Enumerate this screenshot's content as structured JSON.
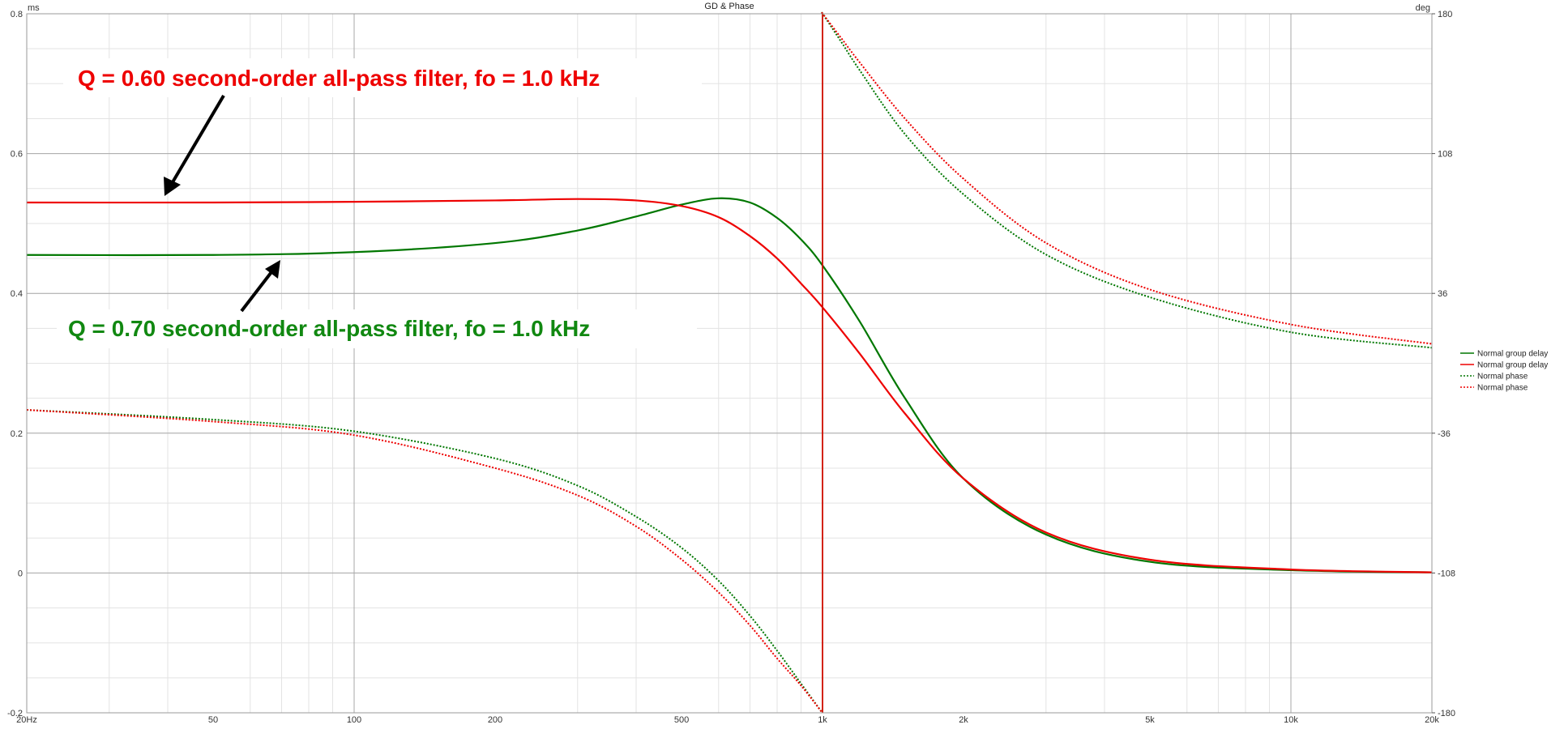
{
  "chart_data": {
    "type": "line",
    "title": "GD & Phase",
    "y_left_unit": "ms",
    "y_right_unit": "deg",
    "x_scale": "log",
    "xlim": [
      20,
      20000
    ],
    "ylim_left": [
      -0.2,
      0.8
    ],
    "ylim_right": [
      -180,
      180
    ],
    "x_ticks": [
      {
        "value": 20,
        "label": "20Hz"
      },
      {
        "value": 50,
        "label": "50"
      },
      {
        "value": 100,
        "label": "100"
      },
      {
        "value": 200,
        "label": "200"
      },
      {
        "value": 500,
        "label": "500"
      },
      {
        "value": 1000,
        "label": "1k"
      },
      {
        "value": 2000,
        "label": "2k"
      },
      {
        "value": 5000,
        "label": "5k"
      },
      {
        "value": 10000,
        "label": "10k"
      },
      {
        "value": 20000,
        "label": "20k"
      }
    ],
    "y_left_ticks": [
      {
        "value": 0.8,
        "label": "0.8"
      },
      {
        "value": 0.6,
        "label": "0.6"
      },
      {
        "value": 0.4,
        "label": "0.4"
      },
      {
        "value": 0.2,
        "label": "0.2"
      },
      {
        "value": 0.0,
        "label": "0"
      },
      {
        "value": -0.2,
        "label": "-0.2"
      }
    ],
    "y_right_ticks": [
      {
        "value": 180,
        "label": "180"
      },
      {
        "value": 108,
        "label": "108"
      },
      {
        "value": 36,
        "label": "36"
      },
      {
        "value": -36,
        "label": "-36"
      },
      {
        "value": -108,
        "label": "-108"
      },
      {
        "value": -180,
        "label": "-180"
      }
    ],
    "grid": true,
    "legend_position": "right",
    "legend": [
      {
        "label": "Normal group delay",
        "color": "#007700",
        "style": "solid"
      },
      {
        "label": "Normal group delay",
        "color": "#ee0000",
        "style": "solid"
      },
      {
        "label": "Normal phase",
        "color": "#007700",
        "style": "dotted"
      },
      {
        "label": "Normal phase",
        "color": "#ee0000",
        "style": "dotted"
      }
    ],
    "series": [
      {
        "color": "#007700",
        "style": "solid",
        "axis": "left",
        "x": [
          20,
          50,
          100,
          200,
          300,
          400,
          500,
          600,
          700,
          800,
          900,
          1000,
          1200,
          1500,
          2000,
          3000,
          5000,
          10000,
          20000
        ],
        "y": [
          0.455,
          0.455,
          0.459,
          0.472,
          0.49,
          0.51,
          0.527,
          0.536,
          0.53,
          0.508,
          0.477,
          0.44,
          0.36,
          0.25,
          0.135,
          0.055,
          0.016,
          0.004,
          0.001
        ]
      },
      {
        "color": "#ee0000",
        "style": "solid",
        "axis": "left",
        "x": [
          20,
          50,
          100,
          200,
          300,
          400,
          500,
          600,
          700,
          800,
          900,
          1000,
          1200,
          1500,
          2000,
          3000,
          5000,
          10000,
          20000
        ],
        "y": [
          0.53,
          0.53,
          0.531,
          0.533,
          0.535,
          0.533,
          0.525,
          0.509,
          0.482,
          0.45,
          0.414,
          0.38,
          0.314,
          0.228,
          0.135,
          0.058,
          0.019,
          0.005,
          0.001
        ]
      },
      {
        "color": "#007700",
        "style": "dotted",
        "axis": "right",
        "x": [
          20,
          50,
          100,
          200,
          300,
          400,
          500,
          600,
          700,
          800,
          900,
          999,
          1000,
          1001,
          1100,
          1200,
          1500,
          2000,
          3000,
          5000,
          10000,
          20000
        ],
        "y": [
          -24,
          -29,
          -35,
          -49,
          -63,
          -79,
          -95,
          -112,
          -130,
          -148,
          -165,
          -180,
          180,
          180,
          165,
          151,
          118,
          87,
          56,
          34,
          16,
          8
        ]
      },
      {
        "color": "#ee0000",
        "style": "dotted",
        "axis": "right",
        "x": [
          20,
          50,
          100,
          200,
          300,
          400,
          500,
          600,
          700,
          800,
          900,
          999,
          1000,
          1001,
          1100,
          1200,
          1500,
          2000,
          3000,
          5000,
          10000,
          20000
        ],
        "y": [
          -24,
          -30,
          -37,
          -54,
          -68,
          -84,
          -101,
          -118,
          -135,
          -152,
          -166,
          -180,
          180,
          180,
          167,
          155,
          126,
          95,
          62,
          38,
          20,
          10
        ]
      }
    ],
    "annotations": [
      {
        "text": "Q = 0.60 second-order all-pass filter, fo = 1.0 kHz",
        "color": "#ee0000"
      },
      {
        "text": "Q = 0.70 second-order all-pass filter, fo = 1.0 kHz",
        "color": "#118811"
      }
    ]
  }
}
